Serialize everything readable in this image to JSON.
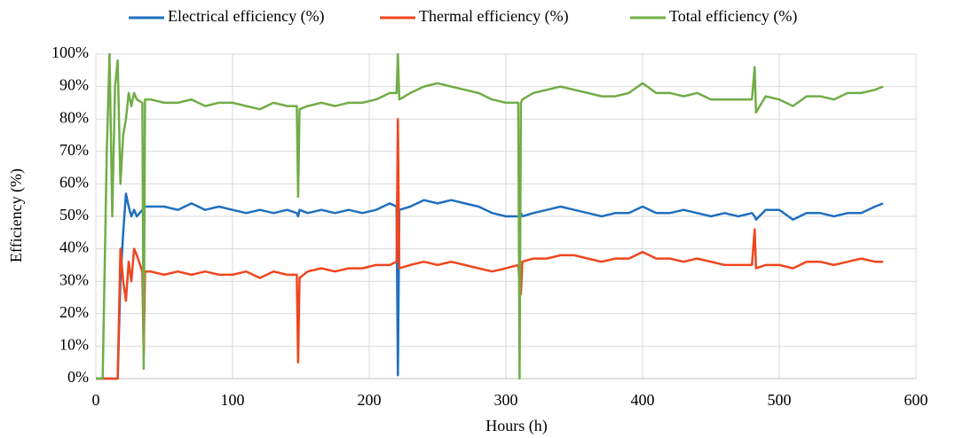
{
  "chart_data": {
    "type": "line",
    "x_label": "Hours (h)",
    "y_label": "Efficiency  (%)",
    "x": [
      0,
      5,
      8,
      10,
      12,
      14,
      16,
      18,
      20,
      22,
      24,
      26,
      28,
      30,
      34,
      35,
      36,
      40,
      50,
      60,
      70,
      80,
      90,
      100,
      110,
      120,
      130,
      140,
      147,
      148,
      149,
      155,
      165,
      175,
      185,
      195,
      205,
      215,
      220,
      221,
      222,
      230,
      240,
      250,
      260,
      270,
      280,
      290,
      300,
      309,
      310,
      311,
      312,
      320,
      330,
      340,
      350,
      360,
      370,
      380,
      390,
      400,
      410,
      420,
      430,
      440,
      450,
      460,
      470,
      480,
      482,
      483,
      490,
      500,
      510,
      520,
      530,
      540,
      550,
      560,
      570,
      576
    ],
    "series": [
      {
        "name": "Electrical efficiency (%)",
        "color": "#1f6fbf",
        "values": [
          0,
          0,
          0,
          0,
          0,
          0,
          0,
          30,
          45,
          57,
          53,
          50,
          52,
          50,
          52,
          52,
          53,
          53,
          53,
          52,
          54,
          52,
          53,
          52,
          51,
          52,
          51,
          52,
          51,
          50,
          52,
          51,
          52,
          51,
          52,
          51,
          52,
          54,
          53,
          1,
          52,
          53,
          55,
          54,
          55,
          54,
          53,
          51,
          50,
          50,
          50,
          51,
          50,
          51,
          52,
          53,
          52,
          51,
          50,
          51,
          51,
          53,
          51,
          51,
          52,
          51,
          50,
          51,
          50,
          51,
          50,
          49,
          52,
          52,
          49,
          51,
          51,
          50,
          51,
          51,
          53,
          54
        ]
      },
      {
        "name": "Thermal efficiency (%)",
        "color": "#f0461e",
        "values": [
          0,
          0,
          0,
          0,
          0,
          0,
          0,
          40,
          30,
          24,
          36,
          30,
          40,
          38,
          33,
          7,
          33,
          33,
          32,
          33,
          32,
          33,
          32,
          32,
          33,
          31,
          33,
          32,
          32,
          5,
          31,
          33,
          34,
          33,
          34,
          34,
          35,
          35,
          36,
          80,
          34,
          35,
          36,
          35,
          36,
          35,
          34,
          33,
          34,
          35,
          30,
          26,
          36,
          37,
          37,
          38,
          38,
          37,
          36,
          37,
          37,
          39,
          37,
          37,
          36,
          37,
          36,
          35,
          35,
          35,
          46,
          34,
          35,
          35,
          34,
          36,
          36,
          35,
          36,
          37,
          36,
          36
        ]
      },
      {
        "name": "Total efficiency (%)",
        "color": "#70ad47",
        "values": [
          0,
          0,
          70,
          100,
          50,
          90,
          98,
          60,
          75,
          80,
          88,
          84,
          88,
          86,
          85,
          3,
          86,
          86,
          85,
          85,
          86,
          84,
          85,
          85,
          84,
          83,
          85,
          84,
          84,
          56,
          83,
          84,
          85,
          84,
          85,
          85,
          86,
          88,
          88,
          100,
          86,
          88,
          90,
          91,
          90,
          89,
          88,
          86,
          85,
          85,
          0,
          85,
          86,
          88,
          89,
          90,
          89,
          88,
          87,
          87,
          88,
          91,
          88,
          88,
          87,
          88,
          86,
          86,
          86,
          86,
          96,
          82,
          87,
          86,
          84,
          87,
          87,
          86,
          88,
          88,
          89,
          90
        ]
      }
    ],
    "xlim": [
      0,
      600
    ],
    "xticks": [
      0,
      100,
      200,
      300,
      400,
      500,
      600
    ],
    "ylim": [
      0,
      100
    ],
    "yticks": [
      {
        "value": 0,
        "label": "0%"
      },
      {
        "value": 10,
        "label": "10%"
      },
      {
        "value": 20,
        "label": "20%"
      },
      {
        "value": 30,
        "label": "30%"
      },
      {
        "value": 40,
        "label": "40%"
      },
      {
        "value": 50,
        "label": "50%"
      },
      {
        "value": 60,
        "label": "60%"
      },
      {
        "value": 70,
        "label": "70%"
      },
      {
        "value": 80,
        "label": "80%"
      },
      {
        "value": 90,
        "label": "90%"
      },
      {
        "value": 100,
        "label": "100%"
      }
    ],
    "grid": true,
    "legend": "top"
  }
}
